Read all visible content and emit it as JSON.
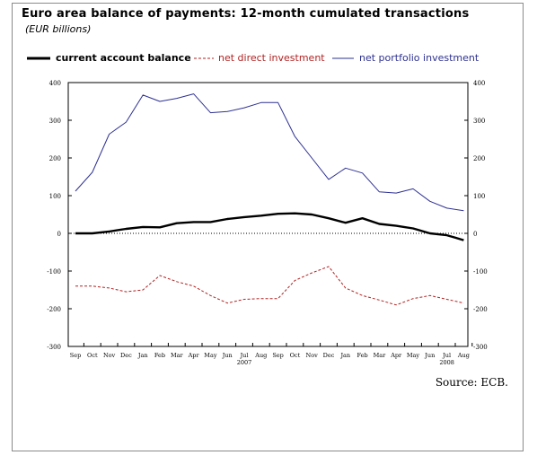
{
  "title": "Euro area balance of payments: 12-month cumulated transactions",
  "subtitle": "(EUR billions)",
  "source": "Source: ECB.",
  "legend": [
    {
      "label": "current account balance",
      "color": "#000000",
      "style": "solid-thick"
    },
    {
      "label": "net direct investment",
      "color": "#b22222",
      "style": "dashed"
    },
    {
      "label": "net portfolio investment",
      "color": "#2e3192",
      "style": "solid"
    }
  ],
  "chart_data": {
    "type": "line",
    "categories": [
      "Sep",
      "Oct",
      "Nov",
      "Dec",
      "Jan",
      "Feb",
      "Mar",
      "Apr",
      "May",
      "Jun",
      "Jul",
      "Aug",
      "Sep",
      "Oct",
      "Nov",
      "Dec",
      "Jan",
      "Feb",
      "Mar",
      "Apr",
      "May",
      "Jun",
      "Jul",
      "Aug"
    ],
    "year_labels": [
      {
        "label": "2007",
        "at": "Jul"
      },
      {
        "label": "2008",
        "at": "Jul2"
      }
    ],
    "ylim": [
      -300,
      400
    ],
    "yticks": [
      -300,
      -200,
      -100,
      0,
      100,
      200,
      300,
      400
    ],
    "zero_line": "dotted",
    "series": [
      {
        "name": "current account balance",
        "color": "#000000",
        "values": [
          0,
          0,
          5,
          12,
          17,
          16,
          27,
          30,
          30,
          38,
          43,
          47,
          52,
          53,
          50,
          40,
          28,
          40,
          25,
          20,
          13,
          0,
          -5,
          -18
        ]
      },
      {
        "name": "net direct investment",
        "color": "#b22222",
        "values": [
          -140,
          -140,
          -145,
          -155,
          -150,
          -112,
          -128,
          -140,
          -165,
          -185,
          -175,
          -173,
          -173,
          -125,
          -105,
          -88,
          -145,
          -165,
          -177,
          -190,
          -173,
          -165,
          -175,
          -185
        ]
      },
      {
        "name": "net portfolio investment",
        "color": "#2e3192",
        "values": [
          112,
          162,
          263,
          295,
          367,
          350,
          358,
          370,
          320,
          323,
          333,
          347,
          347,
          257,
          200,
          143,
          173,
          160,
          110,
          107,
          118,
          85,
          67,
          60
        ]
      }
    ]
  }
}
